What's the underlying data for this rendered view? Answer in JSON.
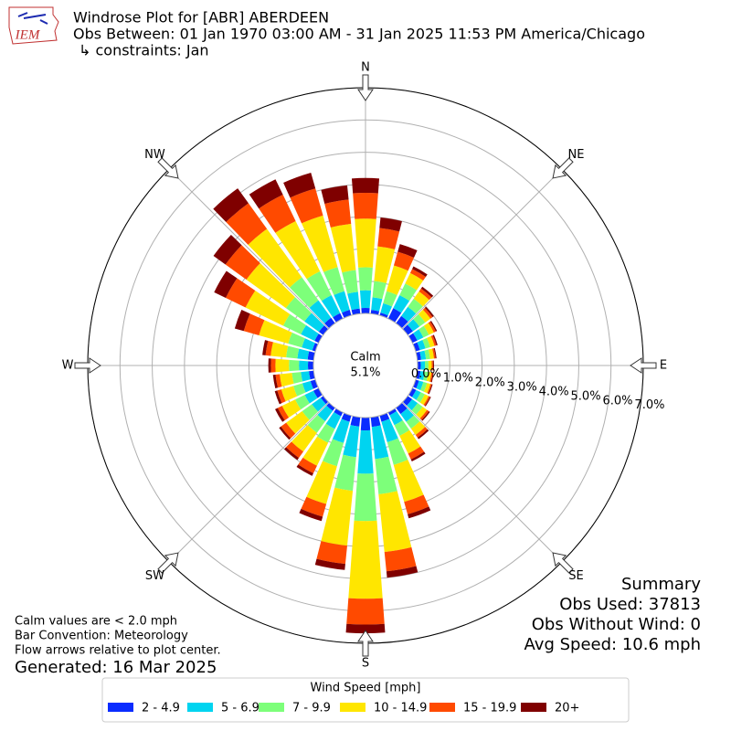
{
  "logo_text": "IEM",
  "title_lines": [
    "Windrose Plot for [ABR] ABERDEEN",
    "Obs Between: 01 Jan 1970 03:00 AM - 31 Jan 2025 11:53 PM America/Chicago",
    "↳ constraints: Jan"
  ],
  "notes": [
    "Calm values are < 2.0 mph",
    "Bar Convention: Meteorology",
    "Flow arrows relative to plot center."
  ],
  "generated": "Generated: 16 Mar 2025",
  "summary": [
    "Summary",
    "Obs Used: 37813",
    "Obs Without Wind: 0",
    "Avg Speed: 10.6 mph"
  ],
  "chart_data": {
    "type": "windrose",
    "compass": [
      "N",
      "NE",
      "E",
      "SE",
      "S",
      "SW",
      "W",
      "NW"
    ],
    "calm": {
      "label": "Calm",
      "value": 5.1,
      "value_label": "5.1%"
    },
    "rlim": [
      0,
      7
    ],
    "rticks": [
      {
        "value": 0,
        "label": "0.0%"
      },
      {
        "value": 1,
        "label": "1.0%"
      },
      {
        "value": 2,
        "label": "2.0%"
      },
      {
        "value": 3,
        "label": "3.0%"
      },
      {
        "value": 4,
        "label": "4.0%"
      },
      {
        "value": 5,
        "label": "5.0%"
      },
      {
        "value": 6,
        "label": "6.0%"
      },
      {
        "value": 7,
        "label": "7.0%"
      }
    ],
    "grid": true,
    "legend_title": "Wind Speed [mph]",
    "legend_position": "bottom",
    "x": [
      0,
      10,
      20,
      30,
      40,
      50,
      60,
      70,
      80,
      90,
      100,
      110,
      120,
      130,
      140,
      150,
      160,
      170,
      180,
      190,
      200,
      210,
      220,
      230,
      240,
      250,
      260,
      270,
      280,
      290,
      300,
      310,
      320,
      330,
      340,
      350
    ],
    "series": [
      {
        "name": "2 - 4.9",
        "color": "#0a2cff",
        "values": [
          0.17,
          0.12,
          0.09,
          0.36,
          0.28,
          0.2,
          0.17,
          0.14,
          0.12,
          0.1,
          0.1,
          0.11,
          0.13,
          0.17,
          0.24,
          0.1,
          0.2,
          0.3,
          0.4,
          0.29,
          0.2,
          0.13,
          0.12,
          0.1,
          0.18,
          0.16,
          0.15,
          0.17,
          0.19,
          0.1,
          0.14,
          0.17,
          0.21,
          0.19,
          0.18,
          0.16
        ]
      },
      {
        "name": "5 - 6.9",
        "color": "#00d4f0",
        "values": [
          0.55,
          0.39,
          0.3,
          0.45,
          0.35,
          0.25,
          0.21,
          0.18,
          0.15,
          0.13,
          0.13,
          0.14,
          0.16,
          0.21,
          0.3,
          0.34,
          0.66,
          1.0,
          1.34,
          0.95,
          0.68,
          0.44,
          0.4,
          0.34,
          0.3,
          0.26,
          0.25,
          0.28,
          0.32,
          0.34,
          0.47,
          0.55,
          0.67,
          0.62,
          0.6,
          0.52
        ]
      },
      {
        "name": "7 - 9.9",
        "color": "#7dff7a",
        "values": [
          0.71,
          0.51,
          0.39,
          0.4,
          0.31,
          0.22,
          0.19,
          0.15,
          0.13,
          0.11,
          0.11,
          0.12,
          0.14,
          0.19,
          0.26,
          0.37,
          0.73,
          1.1,
          1.47,
          1.05,
          0.75,
          0.48,
          0.44,
          0.37,
          0.33,
          0.29,
          0.28,
          0.31,
          0.35,
          0.44,
          0.61,
          0.71,
          0.88,
          0.82,
          0.78,
          0.68
        ]
      },
      {
        "name": "10 - 14.9",
        "color": "#ffe600",
        "values": [
          1.51,
          1.08,
          0.83,
          0.36,
          0.28,
          0.2,
          0.17,
          0.14,
          0.12,
          0.1,
          0.1,
          0.11,
          0.13,
          0.17,
          0.24,
          0.61,
          1.19,
          1.8,
          2.41,
          1.71,
          1.22,
          0.79,
          0.72,
          0.61,
          0.45,
          0.39,
          0.38,
          0.42,
          0.48,
          0.94,
          1.3,
          1.51,
          1.85,
          1.73,
          1.66,
          1.44
        ]
      },
      {
        "name": "15 - 19.9",
        "color": "#ff4a00",
        "values": [
          0.8,
          0.57,
          0.44,
          0.14,
          0.11,
          0.08,
          0.07,
          0.06,
          0.05,
          0.04,
          0.04,
          0.04,
          0.05,
          0.07,
          0.1,
          0.2,
          0.4,
          0.6,
          0.8,
          0.57,
          0.41,
          0.26,
          0.24,
          0.2,
          0.15,
          0.13,
          0.13,
          0.14,
          0.16,
          0.49,
          0.68,
          0.8,
          0.98,
          0.91,
          0.87,
          0.76
        ]
      },
      {
        "name": "20+",
        "color": "#7f0000",
        "values": [
          0.46,
          0.33,
          0.25,
          0.09,
          0.07,
          0.05,
          0.04,
          0.04,
          0.03,
          0.03,
          0.03,
          0.03,
          0.03,
          0.04,
          0.06,
          0.07,
          0.13,
          0.2,
          0.27,
          0.19,
          0.14,
          0.09,
          0.08,
          0.07,
          0.09,
          0.08,
          0.08,
          0.08,
          0.1,
          0.29,
          0.4,
          0.46,
          0.57,
          0.53,
          0.51,
          0.44
        ]
      }
    ]
  }
}
